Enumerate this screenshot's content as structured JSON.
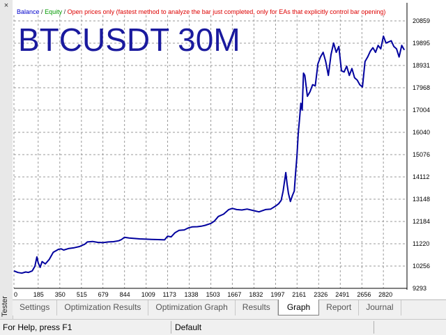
{
  "tester_label": "Tester",
  "legend": {
    "balance": "Balance",
    "equity": "Equity",
    "description": "Open prices only (fastest method to analyze the bar just completed, only for EAs that explicitly control bar opening)",
    "balance_color": "#0000cc",
    "equity_color": "#009900",
    "description_color": "#dd0000"
  },
  "title": "BTCUSDT 30M",
  "tabs": [
    {
      "label": "Settings",
      "active": false
    },
    {
      "label": "Optimization Results",
      "active": false
    },
    {
      "label": "Optimization Graph",
      "active": false
    },
    {
      "label": "Results",
      "active": false
    },
    {
      "label": "Graph",
      "active": true
    },
    {
      "label": "Report",
      "active": false
    },
    {
      "label": "Journal",
      "active": false
    }
  ],
  "status": {
    "help": "For Help, press F1",
    "profile": "Default"
  },
  "chart_data": {
    "type": "line",
    "line_color": "#00009e",
    "grid": true,
    "y_ticks": [
      9293,
      10256,
      11220,
      12184,
      13148,
      14112,
      15076,
      16040,
      17004,
      17968,
      18931,
      19895,
      20859
    ],
    "ylim": [
      9293,
      20859
    ],
    "x_ticks": [
      0,
      185,
      350,
      515,
      679,
      844,
      1009,
      1173,
      1338,
      1503,
      1667,
      1832,
      1997,
      2161,
      2326,
      2491,
      2656,
      2820
    ],
    "xlim": [
      0,
      3000
    ],
    "series": [
      {
        "x": [
          0,
          30,
          60,
          90,
          110,
          140,
          160,
          175,
          185,
          200,
          215,
          240,
          270,
          300,
          340,
          360,
          380,
          420,
          460,
          500,
          540,
          560,
          600,
          640,
          680,
          720,
          760,
          800,
          820,
          844,
          880,
          920,
          960,
          1009,
          1050,
          1100,
          1150,
          1173,
          1200,
          1230,
          1260,
          1300,
          1330,
          1360,
          1400,
          1430,
          1460,
          1503,
          1530,
          1560,
          1600,
          1640,
          1667,
          1700,
          1740,
          1780,
          1832,
          1870,
          1920,
          1960,
          1997,
          2020,
          2040,
          2055,
          2065,
          2075,
          2085,
          2095,
          2110,
          2125,
          2140,
          2150,
          2160,
          2170,
          2180,
          2190,
          2200,
          2210,
          2220,
          2240,
          2260,
          2280,
          2300,
          2320,
          2340,
          2360,
          2380,
          2400,
          2420,
          2440,
          2460,
          2480,
          2500,
          2520,
          2540,
          2560,
          2580,
          2600,
          2620,
          2640,
          2660,
          2680,
          2700,
          2720,
          2740,
          2760,
          2780,
          2800,
          2820,
          2840,
          2860,
          2880,
          2900,
          2920,
          2940,
          2960,
          2980
        ],
        "y": [
          10050,
          9980,
          9950,
          10000,
          9980,
          10050,
          10250,
          10650,
          10400,
          10200,
          10450,
          10350,
          10550,
          10850,
          10980,
          11000,
          10950,
          11020,
          11050,
          11100,
          11200,
          11300,
          11320,
          11280,
          11270,
          11300,
          11310,
          11350,
          11400,
          11500,
          11470,
          11450,
          11430,
          11420,
          11410,
          11400,
          11390,
          11550,
          11520,
          11700,
          11800,
          11820,
          11900,
          11950,
          11960,
          11980,
          12020,
          12100,
          12200,
          12400,
          12500,
          12700,
          12750,
          12700,
          12680,
          12720,
          12650,
          12600,
          12700,
          12720,
          12850,
          12950,
          13100,
          13500,
          13900,
          14300,
          13800,
          13400,
          13050,
          13300,
          13500,
          14300,
          15000,
          16000,
          16600,
          17300,
          17000,
          18600,
          18500,
          17600,
          17800,
          18100,
          18050,
          19000,
          19300,
          19500,
          19100,
          18500,
          19400,
          19900,
          19500,
          19750,
          18700,
          18650,
          18900,
          18500,
          18800,
          18400,
          18300,
          18100,
          18000,
          19100,
          19300,
          19550,
          19700,
          19500,
          19800,
          19650,
          20200,
          19900,
          19950,
          20000,
          19750,
          19650,
          19300,
          19800,
          19600
        ]
      }
    ]
  }
}
